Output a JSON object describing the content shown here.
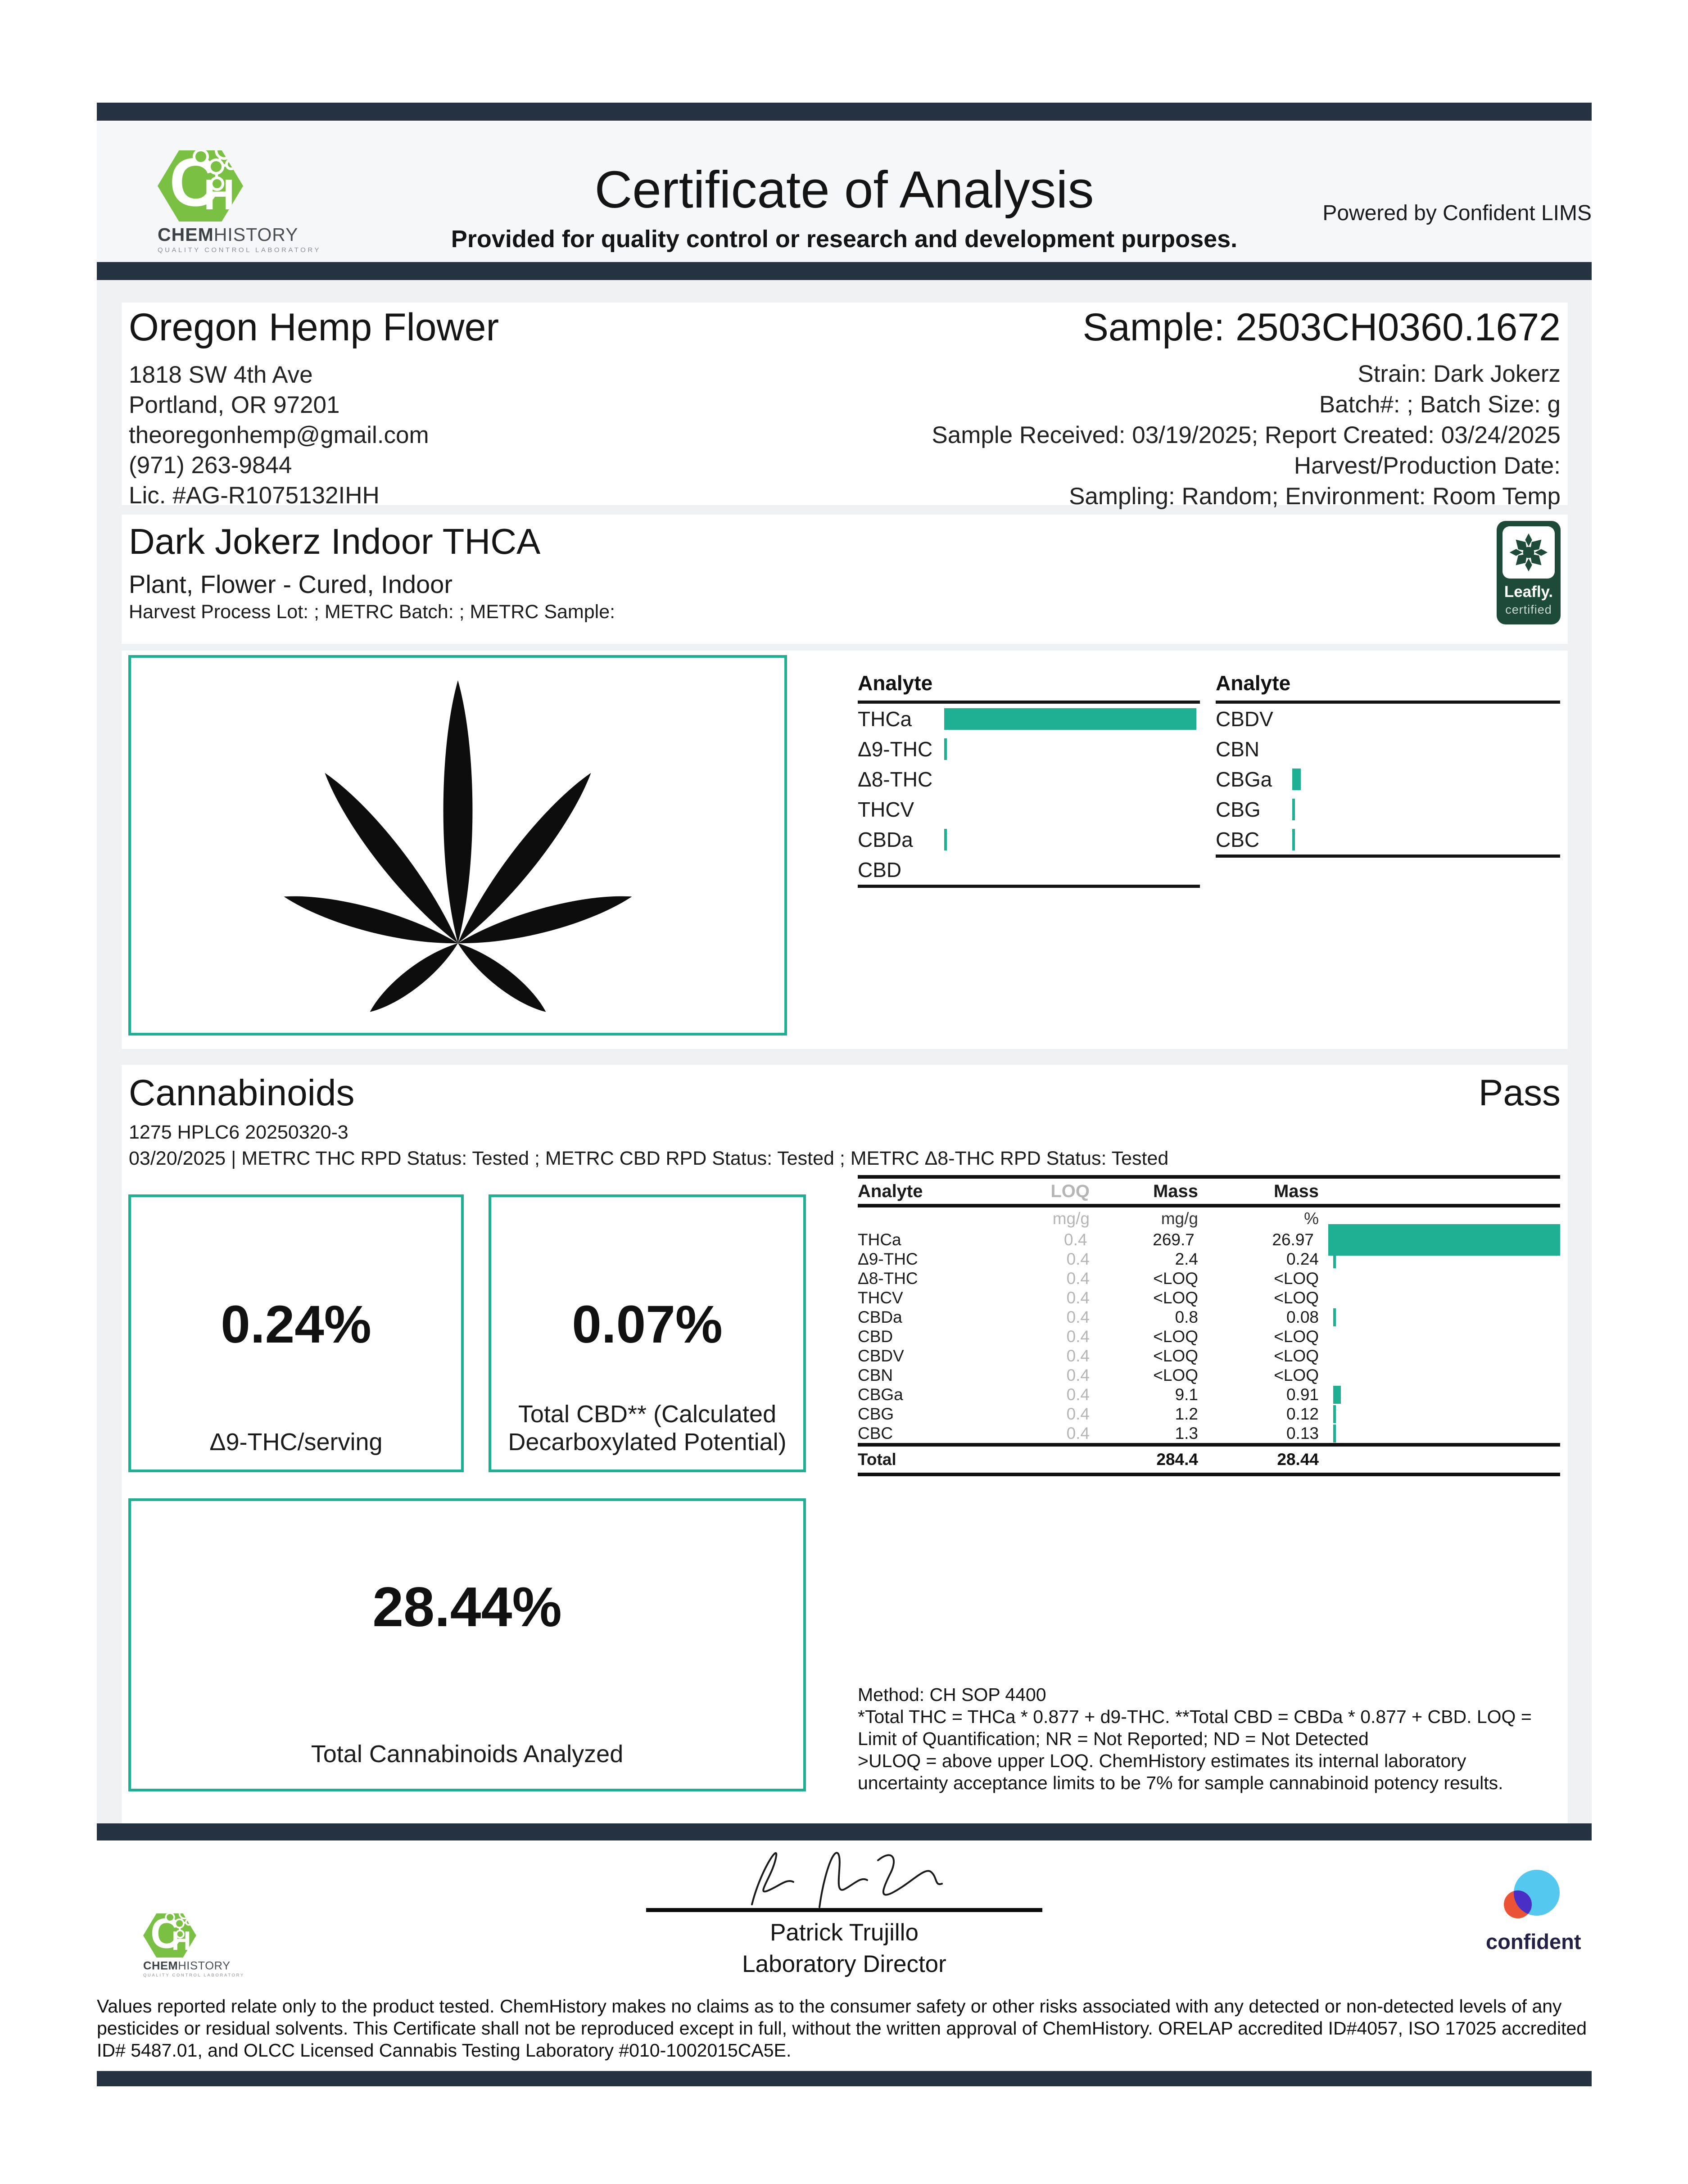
{
  "header": {
    "logo": {
      "monogram_c": "C",
      "monogram_h": "H",
      "wordmark_bold": "CHEM",
      "wordmark_rest": "HISTORY",
      "tagline": "QUALITY CONTROL LABORATORY"
    },
    "title": "Certificate of Analysis",
    "subtitle": "Provided for quality control or research and development purposes.",
    "powered_by": "Powered by Confident LIMS"
  },
  "client": {
    "name": "Oregon Hemp Flower",
    "address1": "1818 SW 4th Ave",
    "address2": "Portland, OR 97201",
    "email": "theoregonhemp@gmail.com",
    "phone": "(971) 263-9844",
    "license": "Lic. #AG-R1075132IHH"
  },
  "sample": {
    "title": "Sample: 2503CH0360.1672",
    "strain": "Strain: Dark Jokerz",
    "batch": "Batch#: ; Batch Size:  g",
    "received": "Sample Received: 03/19/2025; Report Created: 03/24/2025",
    "harvest": "Harvest/Production Date:",
    "sampling": "Sampling: Random; Environment: Room Temp"
  },
  "product": {
    "name": "Dark Jokerz Indoor THCA",
    "type": "Plant, Flower - Cured, Indoor",
    "lots": "Harvest Process Lot: ; METRC Batch: ; METRC Sample:",
    "leafly_line1": "Leafly.",
    "leafly_line2": "certified"
  },
  "overview": {
    "header_left": "Analyte",
    "header_right": "Analyte"
  },
  "cannabinoids": {
    "section_title": "Cannabinoids",
    "status": "Pass",
    "instrument": "1275 HPLC6 20250320-3",
    "run_info": "03/20/2025 | METRC THC RPD Status: Tested ; METRC CBD RPD Status: Tested ; METRC Δ8-THC RPD Status: Tested",
    "stats": [
      {
        "value": "0.24%",
        "label": "Δ9-THC/serving"
      },
      {
        "value": "0.07%",
        "label": "Total CBD** (Calculated Decarboxylated Potential)"
      },
      {
        "value": "28.44%",
        "label": "Total Cannabinoids Analyzed"
      }
    ],
    "table": {
      "headers": {
        "analyte": "Analyte",
        "loq": "LOQ",
        "mass1": "Mass",
        "mass2": "Mass"
      },
      "units": {
        "loq": "mg/g",
        "mass1": "mg/g",
        "mass2": "%"
      },
      "rows": [
        {
          "analyte": "THCa",
          "loq": "0.4",
          "mass_mg": "269.7",
          "mass_pct": "26.97",
          "pct": 26.97
        },
        {
          "analyte": "Δ9-THC",
          "loq": "0.4",
          "mass_mg": "2.4",
          "mass_pct": "0.24",
          "pct": 0.24
        },
        {
          "analyte": "Δ8-THC",
          "loq": "0.4",
          "mass_mg": "<LOQ",
          "mass_pct": "<LOQ",
          "pct": 0
        },
        {
          "analyte": "THCV",
          "loq": "0.4",
          "mass_mg": "<LOQ",
          "mass_pct": "<LOQ",
          "pct": 0
        },
        {
          "analyte": "CBDa",
          "loq": "0.4",
          "mass_mg": "0.8",
          "mass_pct": "0.08",
          "pct": 0.08
        },
        {
          "analyte": "CBD",
          "loq": "0.4",
          "mass_mg": "<LOQ",
          "mass_pct": "<LOQ",
          "pct": 0
        },
        {
          "analyte": "CBDV",
          "loq": "0.4",
          "mass_mg": "<LOQ",
          "mass_pct": "<LOQ",
          "pct": 0
        },
        {
          "analyte": "CBN",
          "loq": "0.4",
          "mass_mg": "<LOQ",
          "mass_pct": "<LOQ",
          "pct": 0
        },
        {
          "analyte": "CBGa",
          "loq": "0.4",
          "mass_mg": "9.1",
          "mass_pct": "0.91",
          "pct": 0.91
        },
        {
          "analyte": "CBG",
          "loq": "0.4",
          "mass_mg": "1.2",
          "mass_pct": "0.12",
          "pct": 0.12
        },
        {
          "analyte": "CBC",
          "loq": "0.4",
          "mass_mg": "1.3",
          "mass_pct": "0.13",
          "pct": 0.13
        }
      ],
      "total": {
        "label": "Total",
        "mass_mg": "284.4",
        "mass_pct": "28.44"
      }
    },
    "method_text": "Method: CH SOP 4400\n*Total THC = THCa * 0.877 + d9-THC. **Total CBD = CBDa * 0.877 + CBD. LOQ = Limit of Quantification; NR = Not Reported; ND = Not Detected\n>ULOQ = above upper LOQ. ChemHistory estimates its internal laboratory uncertainty acceptance limits to be 7% for sample cannabinoid potency results."
  },
  "chart_data": {
    "type": "bar",
    "title": "Cannabinoid content (% mass)",
    "categories": [
      "THCa",
      "Δ9-THC",
      "Δ8-THC",
      "THCV",
      "CBDa",
      "CBD",
      "CBDV",
      "CBN",
      "CBGa",
      "CBG",
      "CBC"
    ],
    "values": [
      26.97,
      0.24,
      0,
      0,
      0.08,
      0,
      0,
      0,
      0.91,
      0.12,
      0.13
    ],
    "xlabel": "",
    "ylabel": "Mass %",
    "xlim": [
      0,
      26.97
    ],
    "legend": false
  },
  "signature": {
    "name": "Patrick Trujillo",
    "title": "Laboratory Director"
  },
  "confident": {
    "label": "confident"
  },
  "disclaimer": "Values reported relate only to the product tested. ChemHistory makes no claims as to the consumer safety or other risks associated with any detected or non-detected levels of any pesticides or residual solvents. This Certificate shall not be reproduced except in full, without the written approval of ChemHistory.  ORELAP accredited ID#4057, ISO 17025 accredited ID# 5487.01, and OLCC Licensed Cannabis Testing Laboratory #010-1002015CA5E.",
  "colors": {
    "accent_teal": "#1fb094",
    "navy": "#243241",
    "chem_green": "#7ac143",
    "leafly_green": "#1d4a39",
    "confident_blue": "#55c8f0",
    "confident_orange": "#ea5434",
    "confident_purple": "#4a2fc7"
  }
}
